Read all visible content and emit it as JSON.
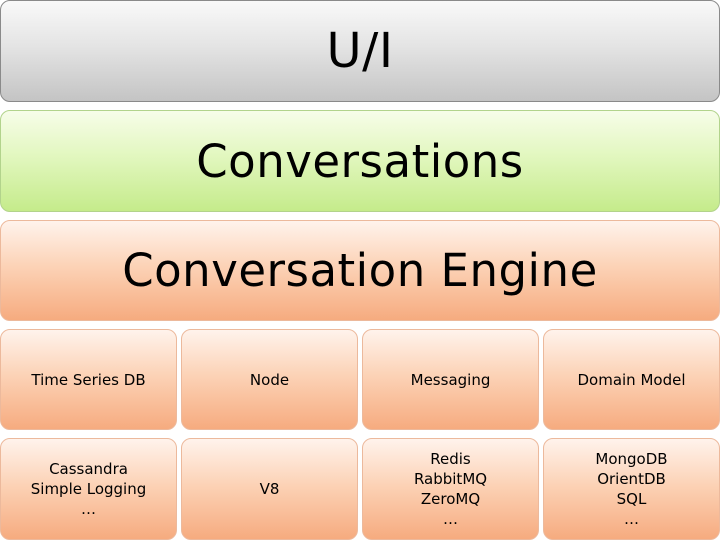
{
  "layers": {
    "ui": "U/I",
    "conversations": "Conversations",
    "engine": "Conversation Engine"
  },
  "components": [
    {
      "title": "Time Series DB",
      "implementations": [
        "Cassandra",
        "Simple Logging",
        "…"
      ]
    },
    {
      "title": "Node",
      "implementations": [
        "V8"
      ]
    },
    {
      "title": "Messaging",
      "implementations": [
        "Redis",
        "RabbitMQ",
        "ZeroMQ",
        "…"
      ]
    },
    {
      "title": "Domain Model",
      "implementations": [
        "MongoDB",
        "OrientDB",
        "SQL",
        "…"
      ]
    }
  ],
  "colors": {
    "ui_layer": "#dcdcdc",
    "conversations_layer": "#e2f7bf",
    "engine_layer": "#fcd3b7"
  }
}
